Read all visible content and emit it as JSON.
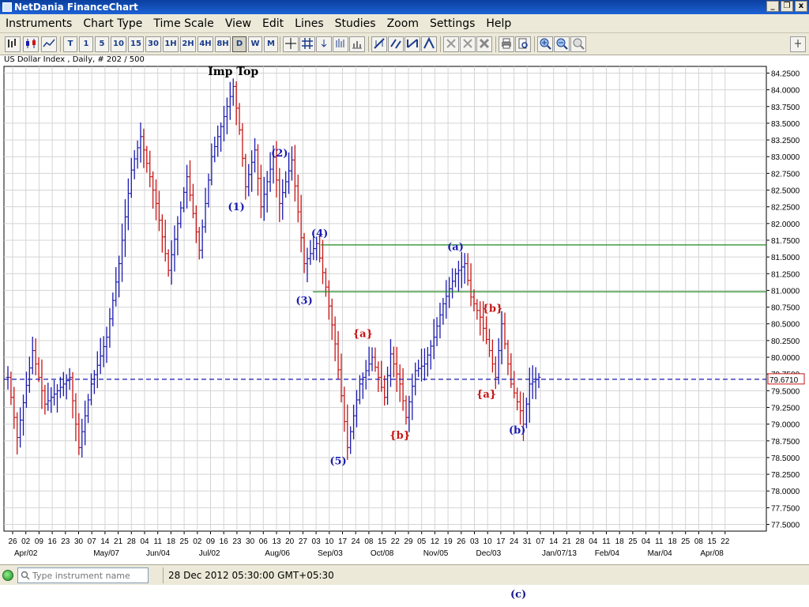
{
  "window": {
    "title": "NetDania FinanceChart",
    "buttons": [
      "_",
      "❐",
      "x"
    ]
  },
  "menu": [
    "Instruments",
    "Chart Type",
    "Time Scale",
    "View",
    "Edit",
    "Lines",
    "Studies",
    "Zoom",
    "Settings",
    "Help"
  ],
  "toolbar": {
    "timescale_buttons": [
      "T",
      "1",
      "5",
      "10",
      "15",
      "30",
      "1H",
      "2H",
      "4H",
      "8H",
      "D",
      "W",
      "M"
    ],
    "active_timescale": "D"
  },
  "chart_info": "US Dollar Index , Daily, # 202 / 500",
  "status": {
    "search_placeholder": "Type instrument name",
    "datetime": "28 Dec 2012 05:30:00 GMT+05:30"
  },
  "caption": "(c)",
  "colors": {
    "bar": "#333333",
    "up": "#1a1ab0",
    "down": "#c81414",
    "grid": "#d4d4d4",
    "hline": "#1f8a1f",
    "dash": "#1a1ab0",
    "wave_blue": "#1a1ab0",
    "wave_red": "#c81414"
  },
  "chart_data": {
    "type": "ohlc",
    "instrument": "US Dollar Index",
    "period": "Daily",
    "y_ticks": [
      "84.2500",
      "84.0000",
      "83.7500",
      "83.5000",
      "83.2500",
      "83.0000",
      "82.7500",
      "82.5000",
      "82.2500",
      "82.0000",
      "81.7500",
      "81.5000",
      "81.2500",
      "81.0000",
      "80.7500",
      "80.5000",
      "80.2500",
      "80.0000",
      "79.7500",
      "79.5000",
      "79.2500",
      "79.0000",
      "78.7500",
      "78.5000",
      "78.2500",
      "78.0000",
      "77.7500",
      "77.5000"
    ],
    "ylim": [
      77.4,
      84.35
    ],
    "x_day_labels": [
      "26",
      "02",
      "09",
      "16",
      "23",
      "30",
      "07",
      "14",
      "21",
      "28",
      "04",
      "11",
      "18",
      "25",
      "02",
      "09",
      "16",
      "23",
      "30",
      "06",
      "13",
      "20",
      "27",
      "03",
      "10",
      "17",
      "24",
      "08",
      "15",
      "22",
      "29",
      "05",
      "12",
      "19",
      "26",
      "03",
      "10",
      "17",
      "24",
      "31",
      "07",
      "14",
      "21",
      "28",
      "04",
      "11",
      "18",
      "25",
      "04",
      "11",
      "18",
      "25",
      "08",
      "15",
      "22"
    ],
    "x_month_labels": [
      {
        "label": "Apr/02",
        "idx": 0
      },
      {
        "label": "May/07",
        "idx": 6
      },
      {
        "label": "Jun/04",
        "idx": 10
      },
      {
        "label": "Jul/02",
        "idx": 14
      },
      {
        "label": "Aug/06",
        "idx": 19
      },
      {
        "label": "Sep/03",
        "idx": 23
      },
      {
        "label": "Oct/08",
        "idx": 27
      },
      {
        "label": "Nov/05",
        "idx": 31
      },
      {
        "label": "Dec/03",
        "idx": 35
      },
      {
        "label": "Jan/07/13",
        "idx": 40
      },
      {
        "label": "Feb/04",
        "idx": 44
      },
      {
        "label": "Mar/04",
        "idx": 48
      },
      {
        "label": "Apr/08",
        "idx": 52
      }
    ],
    "n_weeks": 55,
    "n_bars": 195,
    "anchors": [
      [
        0,
        79.7
      ],
      [
        3,
        78.8
      ],
      [
        8,
        80.1
      ],
      [
        12,
        79.3
      ],
      [
        20,
        79.7
      ],
      [
        23,
        78.65
      ],
      [
        27,
        79.6
      ],
      [
        32,
        80.3
      ],
      [
        36,
        81.4
      ],
      [
        40,
        82.8
      ],
      [
        43,
        83.3
      ],
      [
        48,
        82.3
      ],
      [
        52,
        81.3
      ],
      [
        58,
        82.7
      ],
      [
        62,
        81.6
      ],
      [
        66,
        83.0
      ],
      [
        70,
        83.6
      ],
      [
        73,
        84.05
      ],
      [
        75,
        83.4
      ],
      [
        77,
        82.55
      ],
      [
        80,
        83.1
      ],
      [
        82,
        82.25
      ],
      [
        86,
        83.0
      ],
      [
        88,
        82.3
      ],
      [
        92,
        82.95
      ],
      [
        96,
        81.4
      ],
      [
        100,
        81.7
      ],
      [
        103,
        81.05
      ],
      [
        106,
        80.2
      ],
      [
        110,
        78.65
      ],
      [
        114,
        79.6
      ],
      [
        118,
        80.0
      ],
      [
        122,
        79.4
      ],
      [
        124,
        80.05
      ],
      [
        127,
        79.6
      ],
      [
        129,
        79.1
      ],
      [
        132,
        79.8
      ],
      [
        135,
        79.9
      ],
      [
        138,
        80.3
      ],
      [
        141,
        80.8
      ],
      [
        145,
        81.25
      ],
      [
        148,
        81.4
      ],
      [
        150,
        80.9
      ],
      [
        153,
        80.6
      ],
      [
        156,
        80.1
      ],
      [
        158,
        79.7
      ],
      [
        160,
        80.5
      ],
      [
        163,
        79.6
      ],
      [
        166,
        79.2
      ],
      [
        167,
        79.0
      ],
      [
        169,
        79.6
      ],
      [
        172,
        79.7
      ]
    ],
    "price_line": 79.671,
    "price_label": "79.6710",
    "horizontal_lines": [
      81.68,
      80.98
    ],
    "annotations": [
      {
        "text": "Imp Top",
        "x_idx": 73,
        "y": 84.22,
        "color": "black"
      },
      {
        "text": "(2)",
        "x_idx": 88,
        "y": 83.0,
        "color": "blue"
      },
      {
        "text": "(1)",
        "x_idx": 74,
        "y": 82.2,
        "color": "blue"
      },
      {
        "text": "(4)",
        "x_idx": 101,
        "y": 81.8,
        "color": "blue"
      },
      {
        "text": "(3)",
        "x_idx": 96,
        "y": 80.8,
        "color": "blue"
      },
      {
        "text": "(5)",
        "x_idx": 107,
        "y": 78.4,
        "color": "blue"
      },
      {
        "text": "{a}",
        "x_idx": 115,
        "y": 80.3,
        "color": "red"
      },
      {
        "text": "{b}",
        "x_idx": 127,
        "y": 78.78,
        "color": "red"
      },
      {
        "text": "(a)",
        "x_idx": 145,
        "y": 81.6,
        "color": "blue"
      },
      {
        "text": "{b}",
        "x_idx": 157,
        "y": 80.68,
        "color": "red"
      },
      {
        "text": "{a}",
        "x_idx": 155,
        "y": 79.4,
        "color": "red"
      },
      {
        "text": "(b)",
        "x_idx": 165,
        "y": 78.86,
        "color": "blue"
      }
    ],
    "grid": true
  }
}
